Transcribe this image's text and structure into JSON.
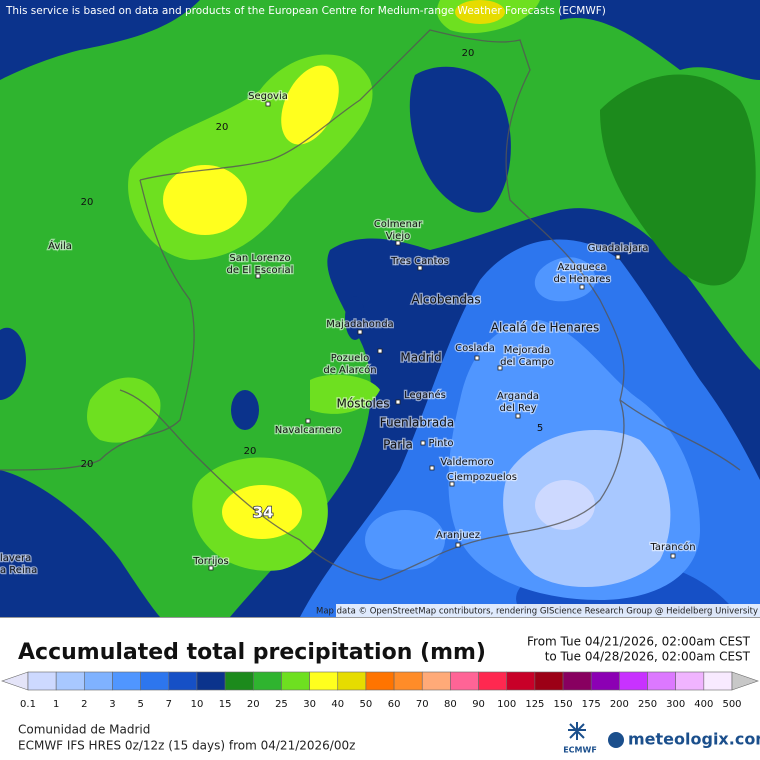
{
  "notice": "This service is based on data and products of the European Centre for Medium-range Weather Forecasts (ECMWF)",
  "attribution": "Map data © OpenStreetMap contributors, rendering GIScience Research Group @ Heidelberg University",
  "places": [
    {
      "lines": [
        "Segovia"
      ]
    },
    {
      "lines": [
        "Ávila"
      ]
    },
    {
      "lines": [
        "San Lorenzo",
        "de El Escorial"
      ]
    },
    {
      "lines": [
        "Colmenar",
        "Viejo"
      ]
    },
    {
      "lines": [
        "Tres Cantos"
      ]
    },
    {
      "lines": [
        "Alcobendas"
      ]
    },
    {
      "lines": [
        "Guadalajara"
      ]
    },
    {
      "lines": [
        "Azuqueca",
        "de Henares"
      ]
    },
    {
      "lines": [
        "Majadahonda"
      ]
    },
    {
      "lines": [
        "Alcalá de Henares"
      ]
    },
    {
      "lines": [
        "Pozuelo",
        "de Alarcón"
      ]
    },
    {
      "lines": [
        "Madrid"
      ]
    },
    {
      "lines": [
        "Coslada"
      ]
    },
    {
      "lines": [
        "Mejorada",
        "del Campo"
      ]
    },
    {
      "lines": [
        "Móstoles"
      ]
    },
    {
      "lines": [
        "Leganés"
      ]
    },
    {
      "lines": [
        "Arganda",
        "del Rey"
      ]
    },
    {
      "lines": [
        "Navalcarnero"
      ]
    },
    {
      "lines": [
        "Fuenlabrada"
      ]
    },
    {
      "lines": [
        "Parla"
      ]
    },
    {
      "lines": [
        "Pinto"
      ]
    },
    {
      "lines": [
        "Valdemoro"
      ]
    },
    {
      "lines": [
        "Ciempozuelos"
      ]
    },
    {
      "lines": [
        "Aranjuez"
      ]
    },
    {
      "lines": [
        "Torrijos"
      ]
    },
    {
      "lines": [
        "Tarancón"
      ]
    },
    {
      "lines": [
        "lavera",
        "a Reina"
      ]
    }
  ],
  "contour_labels": [
    20,
    20,
    20,
    20,
    20,
    5
  ],
  "max_label": 34,
  "title": "Accumulated total precipitation (mm)",
  "period": {
    "from": "From Tue 04/21/2026, 02:00am CEST",
    "to": "to Tue 04/28/2026, 02:00am CEST"
  },
  "scale": {
    "below_color": "#e4e4f8",
    "levels": [
      {
        "value": 0.1,
        "color": "#cdd9ff"
      },
      {
        "value": 1,
        "color": "#a8c8ff"
      },
      {
        "value": 2,
        "color": "#7fb2ff"
      },
      {
        "value": 3,
        "color": "#5096ff"
      },
      {
        "value": 5,
        "color": "#2d76ee"
      },
      {
        "value": 7,
        "color": "#1650c6"
      },
      {
        "value": 10,
        "color": "#0b338c"
      },
      {
        "value": 15,
        "color": "#1c8a1c"
      },
      {
        "value": 20,
        "color": "#2fb42f"
      },
      {
        "value": 25,
        "color": "#6ee020"
      },
      {
        "value": 30,
        "color": "#ffff1e"
      },
      {
        "value": 40,
        "color": "#e6dc00"
      },
      {
        "value": 50,
        "color": "#ff7400"
      },
      {
        "value": 60,
        "color": "#ff8c28"
      },
      {
        "value": 70,
        "color": "#ffaa78"
      },
      {
        "value": 80,
        "color": "#ff6496"
      },
      {
        "value": 90,
        "color": "#ff2850"
      },
      {
        "value": 100,
        "color": "#c80028"
      },
      {
        "value": 125,
        "color": "#9c0016"
      },
      {
        "value": 150,
        "color": "#880060"
      },
      {
        "value": 175,
        "color": "#8c00b4"
      },
      {
        "value": 200,
        "color": "#c832ff"
      },
      {
        "value": 250,
        "color": "#dc78ff"
      },
      {
        "value": 300,
        "color": "#f0b4ff"
      },
      {
        "value": 400,
        "color": "#f8eaff"
      },
      {
        "value": 500,
        "color": "#c8c8c8"
      }
    ]
  },
  "region": "Comunidad de Madrid",
  "model": "ECMWF IFS HRES 0z/12z (15 days) from  04/21/2026/00z",
  "logos": {
    "ecmwf": "ECMWF",
    "meteologix": "meteologix.com"
  }
}
